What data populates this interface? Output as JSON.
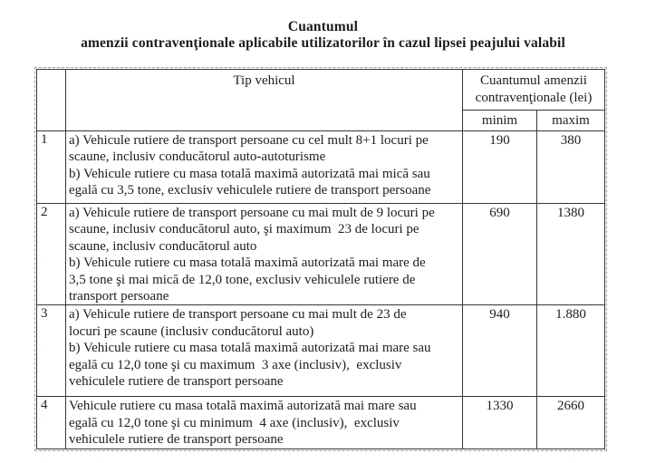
{
  "title": {
    "line1": "Cuantumul",
    "line2": "amenzii contravenţionale aplicabile utilizatorilor în cazul lipsei peajului valabil"
  },
  "table": {
    "header": {
      "index": "",
      "vehicle": "Tip vehicul",
      "fine_group": "Cuantumul amenzii\ncontravenţionale (lei)",
      "min": "minim",
      "max": "maxim"
    },
    "rows": [
      {
        "no": "1",
        "vehicle": "a) Vehicule rutiere de transport persoane cu cel mult 8+1 locuri pe\nscaune, inclusiv conducătorul auto-autoturisme\nb) Vehicule rutiere cu masa totală maximă autorizată mai mică sau\negală cu 3,5 tone, exclusiv vehiculele rutiere de transport persoane",
        "min": "190",
        "max": "380"
      },
      {
        "no": "2",
        "vehicle": "a) Vehicule rutiere de transport persoane cu mai mult de 9 locuri pe\nscaune, inclusiv conducătorul auto, şi maximum  23 de locuri pe\nscaune, inclusiv conducătorul auto\nb) Vehicule rutiere cu masa totală maximă autorizată mai mare de\n3,5 tone şi mai mică de 12,0 tone, exclusiv vehiculele rutiere de\ntransport persoane",
        "min": "690",
        "max": "1380"
      },
      {
        "no": "3",
        "vehicle": "a) Vehicule rutiere de transport persoane cu mai mult de 23 de\nlocuri pe scaune (inclusiv conducătorul auto)\nb) Vehicule rutiere cu masa totală maximă autorizată mai mare sau\negală cu 12,0 tone şi cu maximum  3 axe (inclusiv),  exclusiv\nvehiculele rutiere de transport persoane",
        "min": "940",
        "max": "1.880"
      },
      {
        "no": "4",
        "vehicle": "Vehicule rutiere cu masa totală maximă autorizată mai mare sau\negală cu 12,0 tone şi cu minimum  4 axe (inclusiv),  exclusiv\nvehiculele rutiere de transport persoane",
        "min": "1330",
        "max": "2660"
      }
    ]
  },
  "colors": {
    "text": "#1d1d22",
    "title_text": "#1a1a24",
    "solid_border": "#36363b",
    "dashed_outline": "#8fa5c3",
    "background": "#ffffff"
  }
}
